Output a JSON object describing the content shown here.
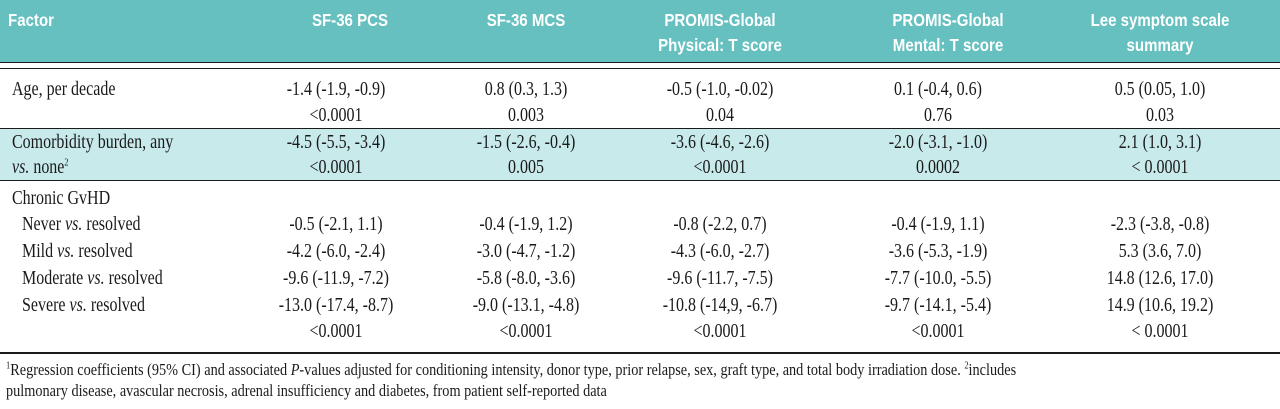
{
  "columns": [
    "Factor",
    "SF-36 PCS",
    "SF-36 MCS",
    "PROMIS-Global",
    "Physical: T score",
    "PROMIS-Global",
    "Mental: T score",
    "Lee symptom scale",
    "summary"
  ],
  "rows": {
    "age": {
      "label": "Age, per decade",
      "c1": "-1.4 (-1.9, -0.9)",
      "p1": "<0.0001",
      "c2": "0.8 (0.3, 1.3)",
      "p2": "0.003",
      "c3": "-0.5 (-1.0, -0.02)",
      "p3": "0.04",
      "c4": "0.1 (-0.4, 0.6)",
      "p4": "0.76",
      "c5": "0.5 (0.05, 1.0)",
      "p5": "0.03"
    },
    "comorbidity": {
      "label_line1": "Comorbidity burden, any",
      "label_vs": "vs.",
      "label_line2": " none",
      "label_sup": "2",
      "c1": "-4.5 (-5.5, -3.4)",
      "p1": "<0.0001",
      "c2": "-1.5 (-2.6, -0.4)",
      "p2": "0.005",
      "c3": "-3.6 (-4.6, -2.6)",
      "p3": "<0.0001",
      "c4": "-2.0 (-3.1, -1.0)",
      "p4": "0.0002",
      "c5": "2.1 (1.0, 3.1)",
      "p5": "< 0.0001"
    },
    "gvhd": {
      "label": "Chronic GvHD",
      "sub": [
        {
          "pre": "Never ",
          "vs": "vs.",
          "post": " resolved",
          "c1": "-0.5 (-2.1, 1.1)",
          "c2": "-0.4 (-1.9, 1.2)",
          "c3": "-0.8 (-2.2, 0.7)",
          "c4": "-0.4 (-1.9, 1.1)",
          "c5": "-2.3 (-3.8, -0.8)"
        },
        {
          "pre": "Mild ",
          "vs": "vs.",
          "post": " resolved",
          "c1": "-4.2 (-6.0, -2.4)",
          "c2": "-3.0 (-4.7, -1.2)",
          "c3": "-4.3 (-6.0, -2.7)",
          "c4": "-3.6 (-5.3, -1.9)",
          "c5": "5.3 (3.6, 7.0)"
        },
        {
          "pre": "Moderate ",
          "vs": "vs.",
          "post": " resolved",
          "c1": "-9.6 (-11.9, -7.2)",
          "c2": "-5.8 (-8.0, -3.6)",
          "c3": "-9.6 (-11.7, -7.5)",
          "c4": "-7.7 (-10.0, -5.5)",
          "c5": "14.8 (12.6, 17.0)"
        },
        {
          "pre": "Severe ",
          "vs": "vs.",
          "post": " resolved",
          "c1": "-13.0 (-17.4, -8.7)",
          "c2": "-9.0 (-13.1, -4.8)",
          "c3": "-10.8 (-14,9, -6.7)",
          "c4": "-9.7 (-14.1, -5.4)",
          "c5": "14.9 (10.6, 19.2)"
        }
      ],
      "p1": "<0.0001",
      "p2": "<0.0001",
      "p3": "<0.0001",
      "p4": "<0.0001",
      "p5": "< 0.0001"
    }
  },
  "footnote": {
    "sup1": "1",
    "line1_a": "Regression coefficients (95% CI) and associated ",
    "line1_p": "P",
    "line1_b": "-values adjusted for conditioning intensity, donor type, prior relapse, sex, graft type, and total body irradiation dose. ",
    "sup2": "2",
    "line1_c": "includes",
    "line2": "pulmonary disease, avascular necrosis, adrenal insufficiency and diabetes, from patient self-reported data"
  },
  "colors": {
    "header": "#66c0c0",
    "band": "#c8eaea"
  }
}
